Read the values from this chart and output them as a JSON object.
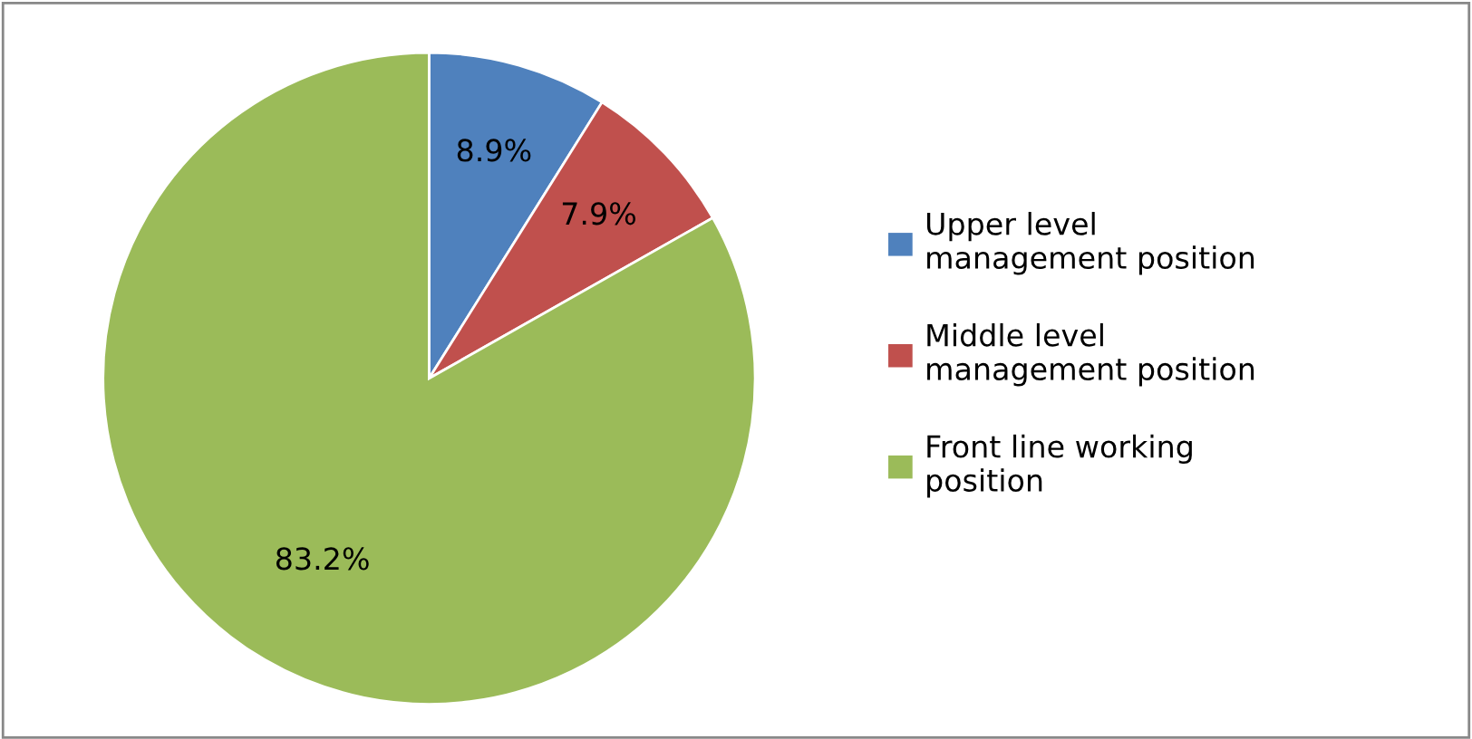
{
  "chart_data": {
    "type": "pie",
    "categories": [
      "Upper level management position",
      "Middle level management position",
      "Front line working position"
    ],
    "values": [
      8.9,
      7.9,
      83.2
    ],
    "colors": [
      "#4f81bd",
      "#c0504d",
      "#9bbb59"
    ],
    "value_labels": [
      "8.9%",
      "7.9%",
      "83.2%"
    ],
    "legend": "right"
  }
}
